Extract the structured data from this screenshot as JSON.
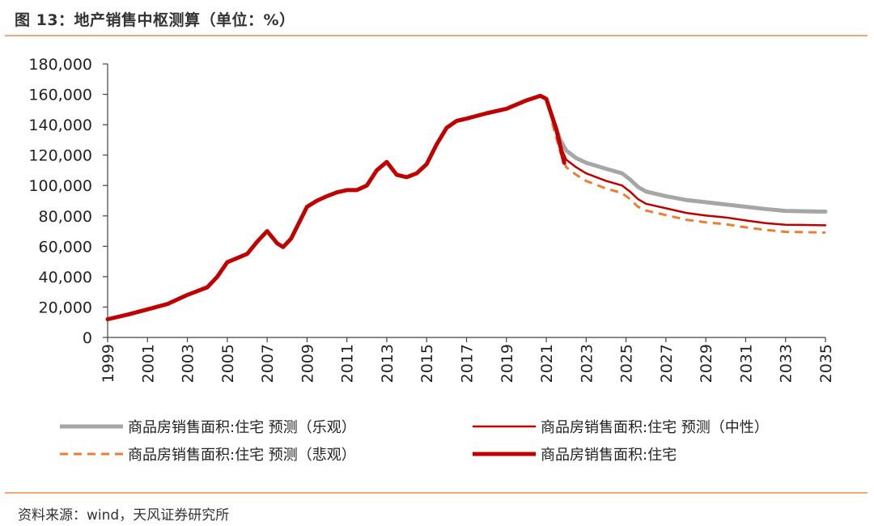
{
  "header": {
    "title": "图 13：地产销售中枢测算（单位：%）"
  },
  "footer": {
    "source": "资料来源：wind，天风证券研究所"
  },
  "chart_data": {
    "type": "line",
    "title": "图 13：地产销售中枢测算（单位：%）",
    "xlabel": "",
    "ylabel": "",
    "xlim": [
      1999,
      2035
    ],
    "ylim": [
      0,
      180000
    ],
    "y_ticks": [
      0,
      20000,
      40000,
      60000,
      80000,
      100000,
      120000,
      140000,
      160000,
      180000
    ],
    "y_tick_labels": [
      "0",
      "20,000",
      "40,000",
      "60,000",
      "80,000",
      "100,000",
      "120,000",
      "140,000",
      "160,000",
      "180,000"
    ],
    "x_ticks": [
      1999,
      2001,
      2003,
      2005,
      2007,
      2009,
      2011,
      2013,
      2015,
      2017,
      2019,
      2021,
      2023,
      2025,
      2027,
      2029,
      2031,
      2033,
      2035
    ],
    "x_tick_labels": [
      "1999",
      "2001",
      "2003",
      "2005",
      "2007",
      "2009",
      "2011",
      "2013",
      "2015",
      "2017",
      "2019",
      "2021",
      "2023",
      "2025",
      "2027",
      "2029",
      "2031",
      "2033",
      "2035"
    ],
    "grid": false,
    "legend_position": "bottom",
    "series": [
      {
        "name": "商品房销售面积:住宅 预测（乐观）",
        "color": "#a6a6a6",
        "style": "solid-thick",
        "points": [
          [
            2021.3,
            145000
          ],
          [
            2021.7,
            130000
          ],
          [
            2022,
            123000
          ],
          [
            2022.5,
            118000
          ],
          [
            2023,
            115000
          ],
          [
            2024,
            111000
          ],
          [
            2024.8,
            108000
          ],
          [
            2025.2,
            104000
          ],
          [
            2025.6,
            99000
          ],
          [
            2026,
            96000
          ],
          [
            2027,
            93000
          ],
          [
            2028,
            90500
          ],
          [
            2029,
            89000
          ],
          [
            2030,
            87500
          ],
          [
            2031,
            86000
          ],
          [
            2032,
            84500
          ],
          [
            2033,
            83300
          ],
          [
            2034,
            83000
          ],
          [
            2035,
            82800
          ]
        ]
      },
      {
        "name": "商品房销售面积:住宅 预测（中性）",
        "color": "#c00000",
        "style": "solid",
        "points": [
          [
            2021.3,
            143000
          ],
          [
            2021.7,
            126000
          ],
          [
            2022,
            117000
          ],
          [
            2022.5,
            112000
          ],
          [
            2023,
            108000
          ],
          [
            2024,
            103000
          ],
          [
            2024.8,
            100000
          ],
          [
            2025.2,
            96000
          ],
          [
            2025.6,
            91000
          ],
          [
            2026,
            88000
          ],
          [
            2027,
            85000
          ],
          [
            2028,
            82000
          ],
          [
            2029,
            80200
          ],
          [
            2030,
            79000
          ],
          [
            2031,
            77000
          ],
          [
            2032,
            75200
          ],
          [
            2033,
            74200
          ],
          [
            2034,
            74000
          ],
          [
            2035,
            73800
          ]
        ]
      },
      {
        "name": "商品房销售面积:住宅 预测（悲观）",
        "color": "#ed7d31",
        "style": "dashed",
        "points": [
          [
            2021.3,
            141000
          ],
          [
            2021.7,
            122000
          ],
          [
            2022,
            112000
          ],
          [
            2022.5,
            107000
          ],
          [
            2023,
            103000
          ],
          [
            2024,
            98000
          ],
          [
            2024.8,
            95000
          ],
          [
            2025.2,
            91000
          ],
          [
            2025.6,
            86000
          ],
          [
            2026,
            83500
          ],
          [
            2027,
            80500
          ],
          [
            2028,
            77500
          ],
          [
            2029,
            75800
          ],
          [
            2030,
            74500
          ],
          [
            2031,
            72500
          ],
          [
            2032,
            70800
          ],
          [
            2033,
            69500
          ],
          [
            2034,
            69300
          ],
          [
            2035,
            69000
          ]
        ]
      },
      {
        "name": "商品房销售面积:住宅",
        "color": "#c00000",
        "style": "solid-thick",
        "points": [
          [
            1999,
            12000
          ],
          [
            2000,
            15000
          ],
          [
            2001,
            18500
          ],
          [
            2002,
            22000
          ],
          [
            2003,
            28000
          ],
          [
            2004,
            33000
          ],
          [
            2004.5,
            40000
          ],
          [
            2005,
            49500
          ],
          [
            2006,
            55000
          ],
          [
            2006.5,
            63000
          ],
          [
            2007,
            70000
          ],
          [
            2007.5,
            62000
          ],
          [
            2007.8,
            59500
          ],
          [
            2008.2,
            65000
          ],
          [
            2009,
            86000
          ],
          [
            2009.5,
            90000
          ],
          [
            2010,
            93000
          ],
          [
            2010.5,
            95500
          ],
          [
            2011,
            97000
          ],
          [
            2011.5,
            97000
          ],
          [
            2012,
            100000
          ],
          [
            2012.5,
            110000
          ],
          [
            2013,
            115500
          ],
          [
            2013.5,
            107000
          ],
          [
            2014,
            105500
          ],
          [
            2014.5,
            108000
          ],
          [
            2015,
            114000
          ],
          [
            2015.5,
            127000
          ],
          [
            2016,
            138000
          ],
          [
            2016.5,
            142500
          ],
          [
            2017,
            144000
          ],
          [
            2018,
            147500
          ],
          [
            2019,
            150500
          ],
          [
            2020,
            156000
          ],
          [
            2020.7,
            159000
          ],
          [
            2021,
            157000
          ],
          [
            2021.5,
            137000
          ],
          [
            2021.9,
            115000
          ]
        ]
      }
    ]
  }
}
